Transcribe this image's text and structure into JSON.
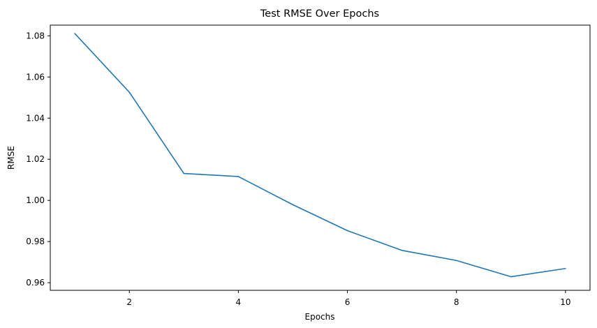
{
  "chart_data": {
    "type": "line",
    "title": "Test RMSE Over Epochs",
    "xlabel": "Epochs",
    "ylabel": "RMSE",
    "xlim": [
      0.55,
      10.45
    ],
    "ylim": [
      0.9563,
      1.0852
    ],
    "xticks": [
      {
        "value": 2,
        "label": "2"
      },
      {
        "value": 4,
        "label": "4"
      },
      {
        "value": 6,
        "label": "6"
      },
      {
        "value": 8,
        "label": "8"
      },
      {
        "value": 10,
        "label": "10"
      }
    ],
    "yticks": [
      {
        "value": 0.96,
        "label": "0.96"
      },
      {
        "value": 0.98,
        "label": "0.98"
      },
      {
        "value": 1.0,
        "label": "1.00"
      },
      {
        "value": 1.02,
        "label": "1.02"
      },
      {
        "value": 1.04,
        "label": "1.04"
      },
      {
        "value": 1.06,
        "label": "1.06"
      },
      {
        "value": 1.08,
        "label": "1.08"
      }
    ],
    "grid": false,
    "series": [
      {
        "color": "#1f77b4",
        "x": [
          1,
          2,
          3,
          4,
          5,
          6,
          7,
          8,
          9,
          10
        ],
        "y": [
          1.0811,
          1.0526,
          1.0131,
          1.0116,
          0.9979,
          0.9853,
          0.9757,
          0.9708,
          0.9629,
          0.9669
        ]
      }
    ]
  }
}
